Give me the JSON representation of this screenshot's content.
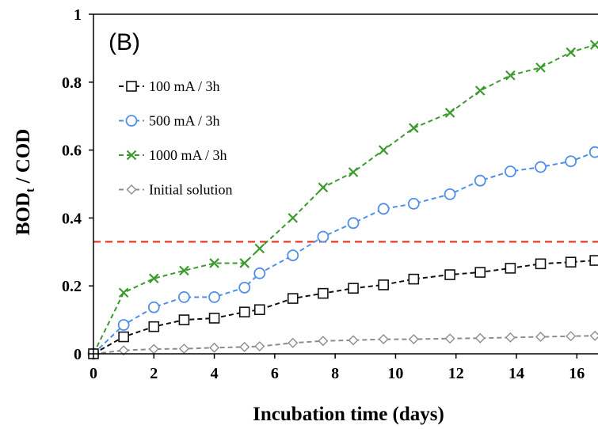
{
  "chart_data": {
    "type": "line",
    "panel_label": "(B)",
    "xlabel": "Incubation time (days)",
    "ylabel_main": "BOD",
    "ylabel_sub": "t",
    "ylabel_rest": " / COD",
    "xlim": [
      0,
      16.7
    ],
    "ylim": [
      0,
      1
    ],
    "x_ticks": [
      0,
      2,
      4,
      6,
      8,
      10,
      12,
      14,
      16
    ],
    "y_ticks": [
      0,
      0.2,
      0.4,
      0.6,
      0.8,
      1
    ],
    "y_tick_labels": [
      "0",
      "0.2",
      "0.4",
      "0.6",
      "0.8",
      "1"
    ],
    "grid": false,
    "legend_position": "top-left",
    "threshold": {
      "y": 0.33,
      "color": "#e8301c",
      "style": "dashed"
    },
    "series": [
      {
        "name": "100 mA / 3h",
        "color": "#111111",
        "marker": "square",
        "x": [
          0,
          1,
          2,
          3,
          4,
          5,
          5.5,
          6.6,
          7.6,
          8.6,
          9.6,
          10.6,
          11.8,
          12.8,
          13.8,
          14.8,
          15.8,
          16.6
        ],
        "y": [
          0,
          0.05,
          0.08,
          0.1,
          0.105,
          0.123,
          0.13,
          0.163,
          0.178,
          0.193,
          0.203,
          0.22,
          0.233,
          0.24,
          0.252,
          0.265,
          0.27,
          0.275
        ]
      },
      {
        "name": "500 mA / 3h",
        "color": "#4f8fe8",
        "marker": "circle",
        "x": [
          0,
          1,
          2,
          3,
          4,
          5,
          5.5,
          6.6,
          7.6,
          8.6,
          9.6,
          10.6,
          11.8,
          12.8,
          13.8,
          14.8,
          15.8,
          16.6
        ],
        "y": [
          0,
          0.085,
          0.137,
          0.167,
          0.167,
          0.195,
          0.237,
          0.29,
          0.345,
          0.385,
          0.427,
          0.442,
          0.47,
          0.51,
          0.537,
          0.55,
          0.567,
          0.594
        ]
      },
      {
        "name": "1000 mA / 3h",
        "color": "#3c9a2e",
        "marker": "x",
        "x": [
          0,
          1,
          2,
          3,
          4,
          5,
          5.5,
          6.6,
          7.6,
          8.6,
          9.6,
          10.6,
          11.8,
          12.8,
          13.8,
          14.8,
          15.8,
          16.6
        ],
        "y": [
          0,
          0.18,
          0.222,
          0.245,
          0.267,
          0.267,
          0.31,
          0.4,
          0.49,
          0.535,
          0.6,
          0.665,
          0.71,
          0.775,
          0.82,
          0.843,
          0.888,
          0.91
        ]
      },
      {
        "name": "Initial solution",
        "color": "#8c8c8c",
        "marker": "diamond",
        "x": [
          0,
          1,
          2,
          3,
          4,
          5,
          5.5,
          6.6,
          7.6,
          8.6,
          9.6,
          10.6,
          11.8,
          12.8,
          13.8,
          14.8,
          15.8,
          16.6
        ],
        "y": [
          0,
          0.01,
          0.014,
          0.015,
          0.018,
          0.02,
          0.022,
          0.032,
          0.038,
          0.04,
          0.043,
          0.043,
          0.045,
          0.046,
          0.048,
          0.05,
          0.052,
          0.053
        ]
      }
    ]
  }
}
